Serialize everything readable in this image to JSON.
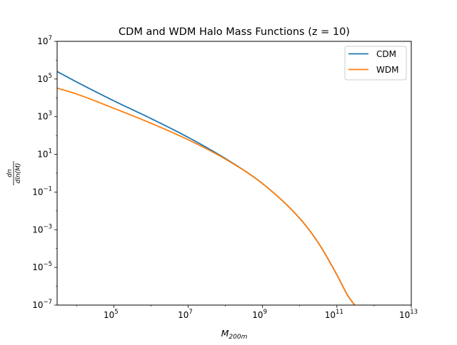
{
  "chart_data": {
    "type": "line",
    "title": "CDM and WDM Halo Mass Functions (z = 10)",
    "xlabel": {
      "base": "M",
      "sub": "200m"
    },
    "ylabel": {
      "numerator": "dn",
      "denominator": "dln(M)"
    },
    "xscale": "log",
    "yscale": "log",
    "xlim": [
      3000,
      10000000000000
    ],
    "ylim": [
      1e-07,
      10000000.0
    ],
    "x_ticks": [
      {
        "base": "10",
        "exp": "5"
      },
      {
        "base": "10",
        "exp": "7"
      },
      {
        "base": "10",
        "exp": "9"
      },
      {
        "base": "10",
        "exp": "11"
      },
      {
        "base": "10",
        "exp": "13"
      }
    ],
    "y_ticks": [
      {
        "base": "10",
        "exp": "−7"
      },
      {
        "base": "10",
        "exp": "−5"
      },
      {
        "base": "10",
        "exp": "−3"
      },
      {
        "base": "10",
        "exp": "−1"
      },
      {
        "base": "10",
        "exp": "1"
      },
      {
        "base": "10",
        "exp": "3"
      },
      {
        "base": "10",
        "exp": "5"
      },
      {
        "base": "10",
        "exp": "7"
      }
    ],
    "legend_position": "top-right",
    "grid": false,
    "series": [
      {
        "name": "CDM",
        "color": "#1f77b4",
        "points": [
          [
            3000,
            250000
          ],
          [
            10000,
            70000
          ],
          [
            100000,
            7000
          ],
          [
            1000000,
            800
          ],
          [
            10000000,
            80
          ],
          [
            100000000,
            6
          ],
          [
            1000000000,
            0.28
          ],
          [
            10000000000,
            0.004
          ],
          [
            31600000000,
            0.0002
          ],
          [
            100000000000,
            4e-06
          ],
          [
            200000000000,
            3e-07
          ],
          [
            300000000000,
            1e-07
          ]
        ]
      },
      {
        "name": "WDM",
        "color": "#ff7f0e",
        "points": [
          [
            3000,
            33000
          ],
          [
            10000,
            16000
          ],
          [
            100000,
            2800
          ],
          [
            1000000,
            450
          ],
          [
            10000000,
            60
          ],
          [
            100000000,
            5.6
          ],
          [
            1000000000,
            0.28
          ],
          [
            10000000000,
            0.004
          ],
          [
            31600000000,
            0.0002
          ],
          [
            100000000000,
            4e-06
          ],
          [
            200000000000,
            3e-07
          ],
          [
            300000000000,
            1e-07
          ]
        ]
      }
    ]
  }
}
